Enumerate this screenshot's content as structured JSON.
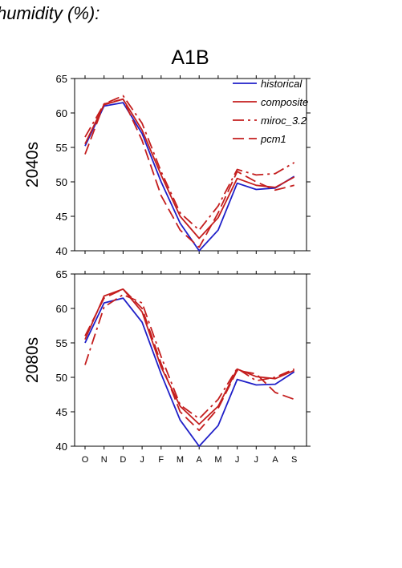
{
  "page": {
    "title": "humidity (%):"
  },
  "chart_data": {
    "type": "line",
    "scenario_title": "A1B",
    "categories": [
      "O",
      "N",
      "D",
      "J",
      "F",
      "M",
      "A",
      "M",
      "J",
      "J",
      "A",
      "S"
    ],
    "legend": {
      "placement": "top-right"
    },
    "colors": {
      "historical": "#1f1fc8",
      "model": "#c41e1e"
    },
    "panels": [
      {
        "ylabel": "2040s",
        "ylim": [
          40,
          65
        ],
        "yticks": [
          40,
          45,
          50,
          55,
          60,
          65
        ],
        "series": [
          {
            "name": "historical",
            "style": "solid",
            "color": "#1f1fc8",
            "values": [
              55.2,
              61.0,
              61.5,
              57.0,
              50.0,
              44.0,
              40.0,
              43.0,
              49.8,
              48.9,
              49.1,
              50.8
            ]
          },
          {
            "name": "composite",
            "style": "solid",
            "color": "#c41e1e",
            "values": [
              55.5,
              61.2,
              62.0,
              57.5,
              51.0,
              45.0,
              41.8,
              44.8,
              50.5,
              49.5,
              49.2,
              50.7
            ]
          },
          {
            "name": "miroc_3.2",
            "style": "dashdot",
            "color": "#c41e1e",
            "values": [
              56.5,
              61.3,
              62.5,
              58.5,
              51.5,
              45.5,
              43.0,
              46.5,
              51.8,
              51.0,
              51.2,
              52.8
            ]
          },
          {
            "name": "pcm1",
            "style": "dash",
            "color": "#c41e1e",
            "values": [
              54.0,
              61.3,
              62.0,
              56.0,
              48.0,
              43.0,
              40.5,
              45.5,
              51.5,
              50.0,
              48.8,
              49.5
            ]
          }
        ]
      },
      {
        "ylabel": "2080s",
        "ylim": [
          40,
          65
        ],
        "yticks": [
          40,
          45,
          50,
          55,
          60,
          65
        ],
        "series": [
          {
            "name": "historical",
            "style": "solid",
            "color": "#1f1fc8",
            "values": [
              55.0,
              60.8,
              61.5,
              58.0,
              50.5,
              43.8,
              40.0,
              43.0,
              49.7,
              48.9,
              49.0,
              50.8
            ]
          },
          {
            "name": "composite",
            "style": "solid",
            "color": "#c41e1e",
            "values": [
              55.5,
              61.8,
              62.8,
              59.5,
              51.5,
              45.8,
              43.2,
              45.8,
              51.2,
              50.1,
              49.8,
              51.0
            ]
          },
          {
            "name": "miroc_3.2",
            "style": "dashdot",
            "color": "#c41e1e",
            "values": [
              51.8,
              60.2,
              62.0,
              60.8,
              53.0,
              46.0,
              44.0,
              46.8,
              51.3,
              49.5,
              50.0,
              51.2
            ]
          },
          {
            "name": "pcm1",
            "style": "dash",
            "color": "#c41e1e",
            "values": [
              56.0,
              61.5,
              62.8,
              60.0,
              52.0,
              45.0,
              42.3,
              45.5,
              51.0,
              50.5,
              47.8,
              46.8
            ]
          }
        ]
      }
    ]
  }
}
